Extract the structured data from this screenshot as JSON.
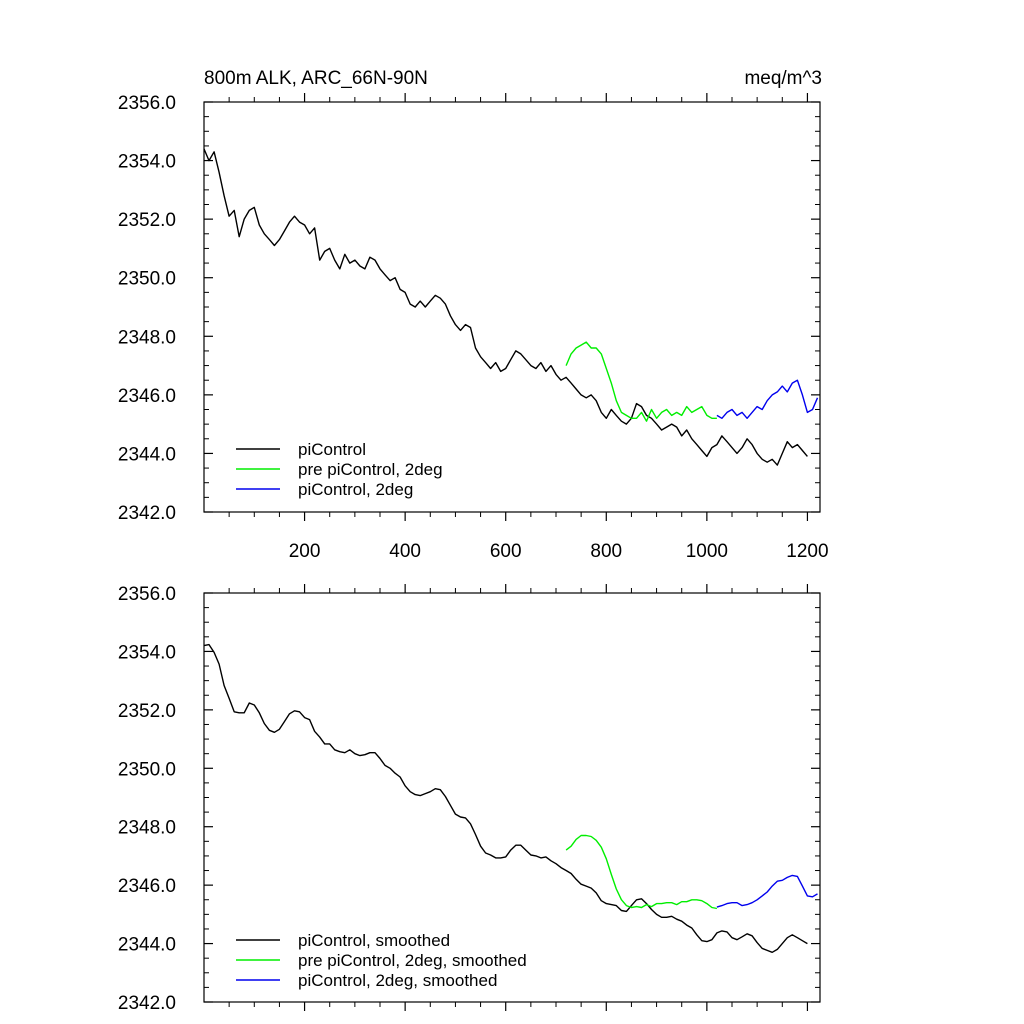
{
  "chart_data": [
    {
      "type": "line",
      "title_left": "800m ALK, ARC_66N-90N",
      "title_right": "meq/m^3",
      "xlim": [
        0,
        1225
      ],
      "ylim": [
        2342.0,
        2356.0
      ],
      "xticks": [
        200,
        400,
        600,
        800,
        1000,
        1200
      ],
      "yticks": [
        "2342.0",
        "2344.0",
        "2346.0",
        "2348.0",
        "2350.0",
        "2352.0",
        "2354.0",
        "2356.0"
      ],
      "show_x_tick_labels": true,
      "legend": [
        "piControl",
        "pre piControl, 2deg",
        "piControl, 2deg"
      ],
      "series": [
        {
          "name": "piControl",
          "color": "#000000",
          "smooth": false,
          "x": [
            0,
            10,
            20,
            30,
            40,
            50,
            60,
            70,
            80,
            90,
            100,
            110,
            120,
            130,
            140,
            150,
            160,
            170,
            180,
            190,
            200,
            210,
            220,
            230,
            240,
            250,
            260,
            270,
            280,
            290,
            300,
            310,
            320,
            330,
            340,
            350,
            360,
            370,
            380,
            390,
            400,
            410,
            420,
            430,
            440,
            450,
            460,
            470,
            480,
            490,
            500,
            510,
            520,
            530,
            540,
            550,
            560,
            570,
            580,
            590,
            600,
            610,
            620,
            630,
            640,
            650,
            660,
            670,
            680,
            690,
            700,
            710,
            720,
            730,
            740,
            750,
            760,
            770,
            780,
            790,
            800,
            810,
            820,
            830,
            840,
            850,
            860,
            870,
            880,
            890,
            900,
            910,
            920,
            930,
            940,
            950,
            960,
            970,
            980,
            990,
            1000,
            1010,
            1020,
            1030,
            1040,
            1050,
            1060,
            1070,
            1080,
            1090,
            1100,
            1110,
            1120,
            1130,
            1140,
            1150,
            1160,
            1170,
            1180,
            1190,
            1200
          ],
          "y": [
            2354.4,
            2354.0,
            2354.3,
            2353.6,
            2352.8,
            2352.1,
            2352.3,
            2351.4,
            2352.0,
            2352.3,
            2352.4,
            2351.8,
            2351.5,
            2351.3,
            2351.1,
            2351.3,
            2351.6,
            2351.9,
            2352.1,
            2351.9,
            2351.8,
            2351.5,
            2351.7,
            2350.6,
            2350.9,
            2351.0,
            2350.6,
            2350.3,
            2350.8,
            2350.5,
            2350.6,
            2350.4,
            2350.3,
            2350.7,
            2350.6,
            2350.3,
            2350.1,
            2349.9,
            2350.0,
            2349.6,
            2349.5,
            2349.1,
            2349.0,
            2349.2,
            2349.0,
            2349.2,
            2349.4,
            2349.3,
            2349.1,
            2348.7,
            2348.4,
            2348.2,
            2348.4,
            2348.3,
            2347.6,
            2347.3,
            2347.1,
            2346.9,
            2347.1,
            2346.8,
            2346.9,
            2347.2,
            2347.5,
            2347.4,
            2347.2,
            2347.0,
            2346.9,
            2347.1,
            2346.8,
            2347.0,
            2346.7,
            2346.5,
            2346.6,
            2346.4,
            2346.2,
            2346.0,
            2345.9,
            2346.0,
            2345.8,
            2345.4,
            2345.2,
            2345.5,
            2345.3,
            2345.1,
            2345.0,
            2345.2,
            2345.7,
            2345.6,
            2345.3,
            2345.2,
            2345.0,
            2344.8,
            2344.9,
            2345.0,
            2344.9,
            2344.6,
            2344.8,
            2344.5,
            2344.3,
            2344.1,
            2343.9,
            2344.2,
            2344.3,
            2344.6,
            2344.4,
            2344.2,
            2344.0,
            2344.2,
            2344.5,
            2344.3,
            2344.0,
            2343.8,
            2343.7,
            2343.8,
            2343.6,
            2344.0,
            2344.4,
            2344.2,
            2344.3,
            2344.1,
            2343.9
          ]
        },
        {
          "name": "pre piControl, 2deg",
          "color": "#00ee00",
          "smooth": false,
          "x": [
            720,
            730,
            740,
            750,
            760,
            770,
            780,
            790,
            800,
            810,
            820,
            830,
            840,
            850,
            860,
            870,
            880,
            890,
            900,
            910,
            920,
            930,
            940,
            950,
            960,
            970,
            980,
            990,
            1000,
            1010,
            1020
          ],
          "y": [
            2347.0,
            2347.4,
            2347.6,
            2347.7,
            2347.8,
            2347.6,
            2347.6,
            2347.4,
            2346.9,
            2346.4,
            2345.8,
            2345.4,
            2345.3,
            2345.2,
            2345.2,
            2345.4,
            2345.1,
            2345.5,
            2345.2,
            2345.4,
            2345.5,
            2345.3,
            2345.4,
            2345.3,
            2345.6,
            2345.4,
            2345.5,
            2345.6,
            2345.3,
            2345.2,
            2345.2
          ]
        },
        {
          "name": "piControl, 2deg",
          "color": "#0000ee",
          "smooth": false,
          "x": [
            1020,
            1030,
            1040,
            1050,
            1060,
            1070,
            1080,
            1090,
            1100,
            1110,
            1120,
            1130,
            1140,
            1150,
            1160,
            1170,
            1180,
            1190,
            1200,
            1210,
            1220
          ],
          "y": [
            2345.3,
            2345.2,
            2345.4,
            2345.5,
            2345.3,
            2345.4,
            2345.2,
            2345.4,
            2345.6,
            2345.5,
            2345.8,
            2346.0,
            2346.1,
            2346.3,
            2346.1,
            2346.4,
            2346.5,
            2346.0,
            2345.4,
            2345.5,
            2345.9
          ]
        }
      ]
    },
    {
      "type": "line",
      "xlim": [
        0,
        1225
      ],
      "ylim": [
        2342.0,
        2356.0
      ],
      "xticks": [
        200,
        400,
        600,
        800,
        1000,
        1200
      ],
      "yticks": [
        "2342.0",
        "2344.0",
        "2346.0",
        "2348.0",
        "2350.0",
        "2352.0",
        "2354.0",
        "2356.0"
      ],
      "show_x_tick_labels": false,
      "legend": [
        "piControl, smoothed",
        "pre piControl, 2deg, smoothed",
        "piControl, 2deg, smoothed"
      ],
      "series": [
        {
          "name": "piControl, smoothed",
          "color": "#000000",
          "smooth": true,
          "source": 0
        },
        {
          "name": "pre piControl, 2deg, smoothed",
          "color": "#00ee00",
          "smooth": true,
          "source": 1
        },
        {
          "name": "piControl, 2deg, smoothed",
          "color": "#0000ee",
          "smooth": true,
          "source": 2
        }
      ]
    }
  ]
}
